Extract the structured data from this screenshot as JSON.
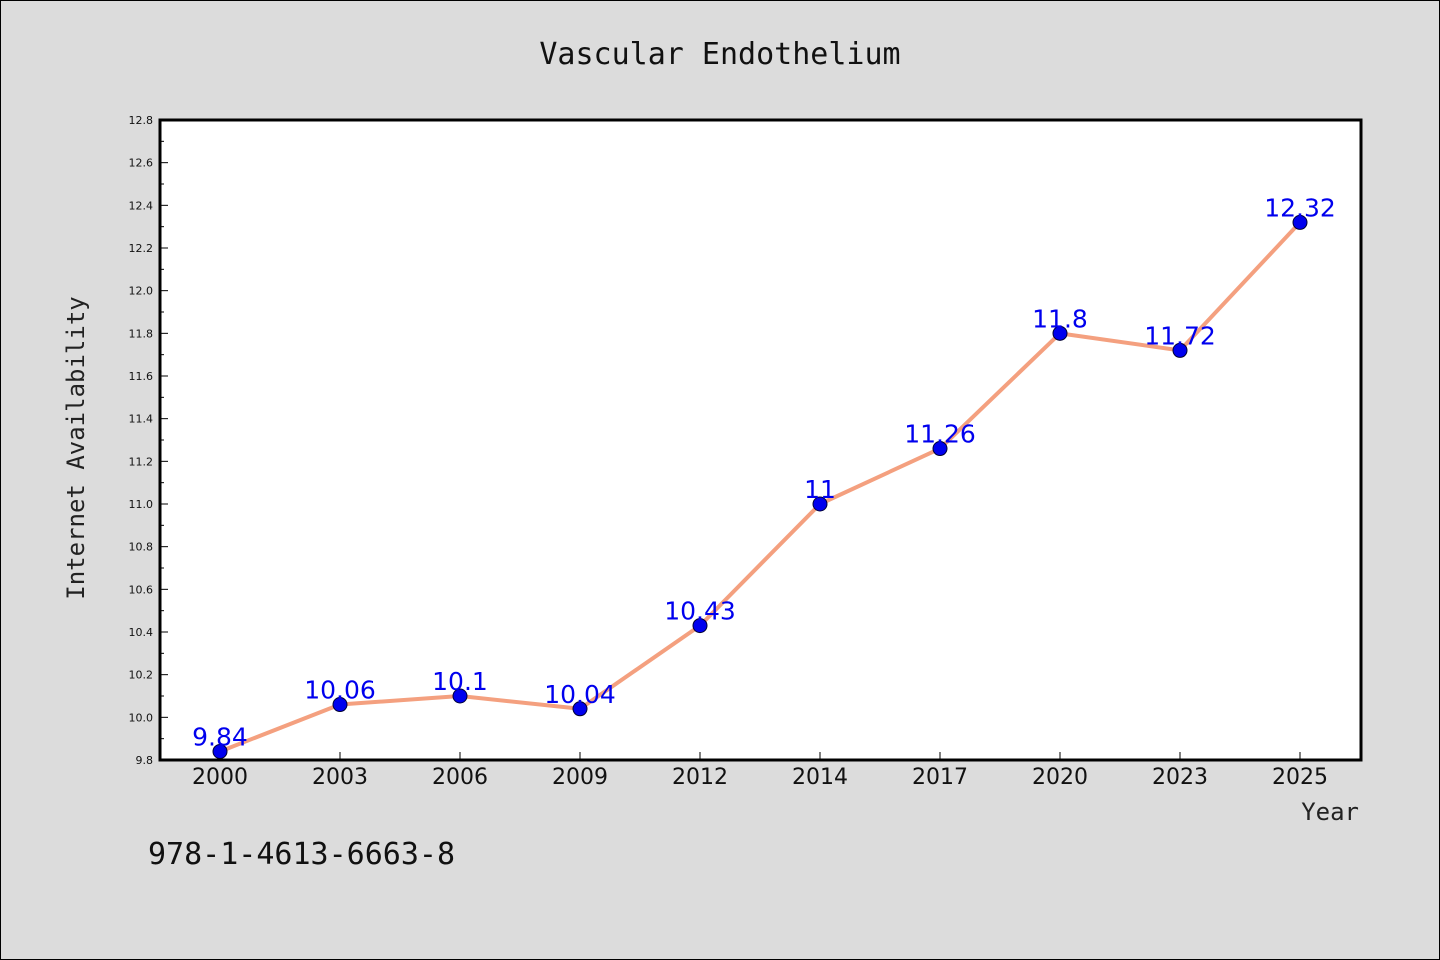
{
  "chart_data": {
    "type": "line",
    "title": "Vascular Endothelium",
    "xlabel": "Year",
    "ylabel": "Internet Availability",
    "categories": [
      "2000",
      "2003",
      "2006",
      "2009",
      "2012",
      "2014",
      "2017",
      "2020",
      "2023",
      "2025"
    ],
    "series": [
      {
        "values": [
          9.84,
          10.06,
          10.1,
          10.04,
          10.43,
          11,
          11.26,
          11.8,
          11.72,
          12.32
        ],
        "labels": [
          "9.84",
          "10.06",
          "10.1",
          "10.04",
          "10.43",
          "11",
          "11.26",
          "11.8",
          "11.72",
          "12.32"
        ]
      }
    ],
    "ylim": [
      9.8,
      12.8
    ],
    "yticks": [
      "9.8",
      "10.0",
      "10.2",
      "10.4",
      "10.6",
      "10.8",
      "11.0",
      "11.2",
      "11.4",
      "11.6",
      "11.8",
      "12.0",
      "12.2",
      "12.4",
      "12.6",
      "12.8"
    ],
    "grid": false,
    "legend": "none",
    "colors": {
      "line": "#f4a07f",
      "marker": "#0000ee",
      "label": "#0000ee",
      "background": "#dcdcdc",
      "plot_background": "#ffffff"
    }
  },
  "footer_text": "978-1-4613-6663-8"
}
